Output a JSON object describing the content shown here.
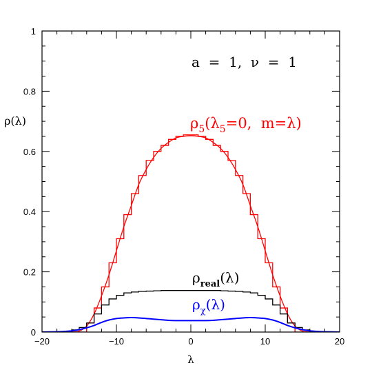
{
  "chart_data": {
    "type": "line",
    "xlim": [
      -20,
      20
    ],
    "ylim": [
      0,
      1
    ],
    "xlabel": "λ",
    "ylabel": "ρ(λ)",
    "x_ticks": [
      -20,
      -10,
      0,
      10,
      20
    ],
    "x_tick_labels": [
      "−20",
      "−10",
      "0",
      "10",
      "20"
    ],
    "y_ticks": [
      0,
      0.2,
      0.4,
      0.6,
      0.8,
      1
    ],
    "y_tick_labels": [
      "0",
      "0.2",
      "0.4",
      "0.6",
      "0.8",
      "1"
    ],
    "grid": false,
    "parameter_label": "a  =  1,  ν  =  1",
    "series": [
      {
        "name": "ρ5(λ5=0, m=λ)",
        "label_main": "ρ",
        "label_sub": "5",
        "label_rest": "(λ",
        "label_sub2": "5",
        "label_end": "=0,  m=λ)",
        "color": "#ff0000",
        "style": "smooth",
        "x": [
          -16,
          -15,
          -14,
          -13,
          -12,
          -11,
          -10,
          -9,
          -8,
          -7,
          -6,
          -5,
          -4,
          -3,
          -2,
          -1,
          0,
          1,
          2,
          3,
          4,
          5,
          6,
          7,
          8,
          9,
          10,
          11,
          12,
          13,
          14,
          15,
          16
        ],
        "y": [
          0.0,
          0.003,
          0.02,
          0.06,
          0.12,
          0.19,
          0.27,
          0.35,
          0.42,
          0.49,
          0.54,
          0.58,
          0.61,
          0.63,
          0.645,
          0.65,
          0.652,
          0.65,
          0.645,
          0.63,
          0.61,
          0.58,
          0.54,
          0.49,
          0.42,
          0.35,
          0.27,
          0.19,
          0.12,
          0.06,
          0.02,
          0.003,
          0.0
        ]
      },
      {
        "name": "ρ5 histogram",
        "color": "#ff0000",
        "style": "step",
        "edges": [
          -14,
          -13,
          -12,
          -11,
          -10,
          -9,
          -8,
          -7,
          -6,
          -5,
          -4,
          -3,
          -2,
          -1,
          0,
          1,
          2,
          3,
          4,
          5,
          6,
          7,
          8,
          9,
          10,
          11,
          12,
          13,
          14
        ],
        "values": [
          0.03,
          0.08,
          0.15,
          0.23,
          0.31,
          0.39,
          0.46,
          0.52,
          0.57,
          0.6,
          0.62,
          0.64,
          0.65,
          0.655,
          0.655,
          0.65,
          0.64,
          0.62,
          0.6,
          0.57,
          0.52,
          0.46,
          0.39,
          0.31,
          0.23,
          0.15,
          0.08,
          0.03
        ]
      },
      {
        "name": "ρreal(λ)",
        "label_main": "ρ",
        "label_sub": "real",
        "label_end": "(λ)",
        "color": "#000000",
        "style": "step",
        "edges": [
          -18,
          -17,
          -16,
          -15,
          -14,
          -13,
          -12,
          -11,
          -10,
          -9,
          -8,
          -7,
          -6,
          -5,
          -4,
          -3,
          -2,
          -1,
          0,
          1,
          2,
          3,
          4,
          5,
          6,
          7,
          8,
          9,
          10,
          11,
          12,
          13,
          14,
          15,
          16,
          17,
          18
        ],
        "values": [
          0.001,
          0.003,
          0.007,
          0.015,
          0.03,
          0.06,
          0.09,
          0.11,
          0.122,
          0.13,
          0.133,
          0.135,
          0.136,
          0.137,
          0.138,
          0.138,
          0.138,
          0.138,
          0.138,
          0.138,
          0.138,
          0.138,
          0.137,
          0.136,
          0.135,
          0.133,
          0.13,
          0.122,
          0.11,
          0.09,
          0.06,
          0.03,
          0.015,
          0.007,
          0.003,
          0.001
        ]
      },
      {
        "name": "ρχ(λ)",
        "label_main": "ρ",
        "label_sub": "χ",
        "label_end": "(λ)",
        "color": "#0000ff",
        "style": "smooth",
        "x": [
          -20,
          -18,
          -17,
          -16,
          -15,
          -14,
          -13,
          -12,
          -11,
          -10,
          -9,
          -8,
          -7,
          -6,
          -5,
          -4,
          -3,
          -2,
          -1,
          0,
          1,
          2,
          3,
          4,
          5,
          6,
          7,
          8,
          9,
          10,
          11,
          12,
          13,
          14,
          15,
          16,
          17,
          18,
          20
        ],
        "y": [
          0.0,
          0.001,
          0.002,
          0.004,
          0.008,
          0.014,
          0.022,
          0.032,
          0.04,
          0.045,
          0.047,
          0.048,
          0.047,
          0.045,
          0.043,
          0.041,
          0.039,
          0.038,
          0.038,
          0.038,
          0.038,
          0.038,
          0.039,
          0.041,
          0.043,
          0.045,
          0.047,
          0.048,
          0.047,
          0.045,
          0.04,
          0.032,
          0.022,
          0.014,
          0.008,
          0.004,
          0.002,
          0.001,
          0.0
        ]
      }
    ]
  }
}
